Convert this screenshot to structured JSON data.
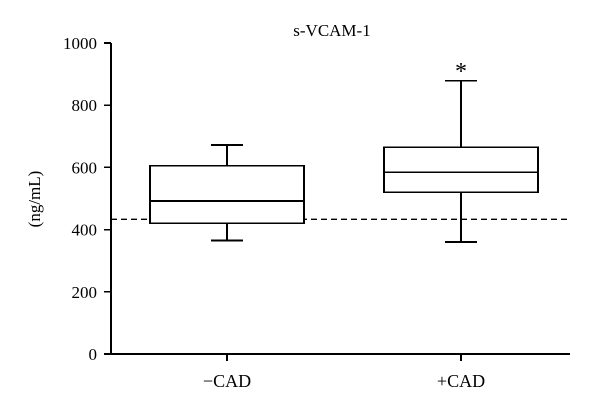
{
  "chart_data": {
    "type": "box",
    "title": "s-VCAM-1",
    "xlabel": "",
    "ylabel": "(ng/mL)",
    "ylim": [
      0,
      1000
    ],
    "yticks": [
      0,
      200,
      400,
      600,
      800,
      1000
    ],
    "yticks_labels": [
      "0",
      "200",
      "400",
      "600",
      "800",
      "1000"
    ],
    "grid": false,
    "legend": "none",
    "categories": [
      "−CAD",
      "+CAD"
    ],
    "boxes": [
      {
        "category": "−CAD",
        "min": 365,
        "q1": 420,
        "median": 492,
        "q3": 605,
        "max": 672,
        "annotation": ""
      },
      {
        "category": "+CAD",
        "min": 360,
        "q1": 520,
        "median": 585,
        "q3": 665,
        "max": 878,
        "annotation": "*"
      }
    ],
    "reference_line": {
      "value": 433,
      "style": "dashed"
    },
    "colors": {
      "stroke": "#000000",
      "box_fill": "#ffffff",
      "background": "#ffffff"
    }
  }
}
